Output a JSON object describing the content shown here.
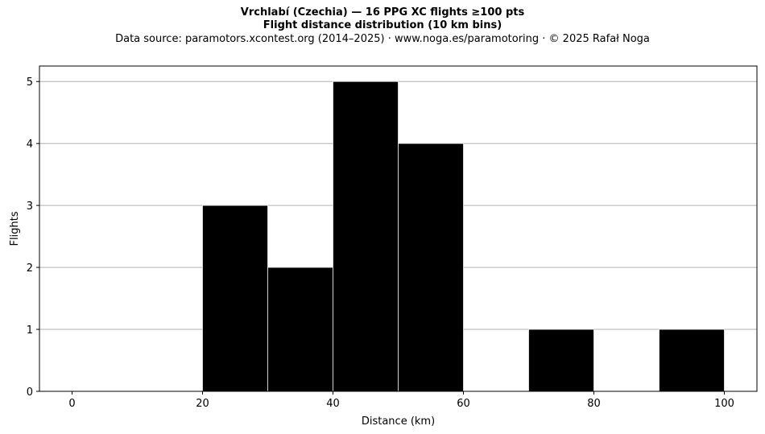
{
  "chart_data": {
    "type": "bar",
    "title": "Vrchlabí (Czechia)  —  16 PPG XC flights ≥100 pts",
    "subtitle": "Flight distance distribution (10 km bins)",
    "source_note": "Data source: paramotors.xcontest.org (2014–2025)  ·  www.noga.es/paramotoring  ·  © 2025 Rafał Noga",
    "xlabel": "Distance (km)",
    "ylabel": "Flights",
    "xlim": [
      -5,
      105
    ],
    "ylim": [
      0,
      5.25
    ],
    "xticks": [
      0,
      20,
      40,
      60,
      80,
      100
    ],
    "yticks": [
      0,
      1,
      2,
      3,
      4,
      5
    ],
    "grid": "y-axis only",
    "bar_color": "#000000",
    "grid_color": "#b0b0b0",
    "bins": [
      {
        "from": 20,
        "to": 30,
        "count": 3
      },
      {
        "from": 30,
        "to": 40,
        "count": 2
      },
      {
        "from": 40,
        "to": 50,
        "count": 5
      },
      {
        "from": 50,
        "to": 60,
        "count": 4
      },
      {
        "from": 70,
        "to": 80,
        "count": 1
      },
      {
        "from": 90,
        "to": 100,
        "count": 1
      }
    ]
  }
}
